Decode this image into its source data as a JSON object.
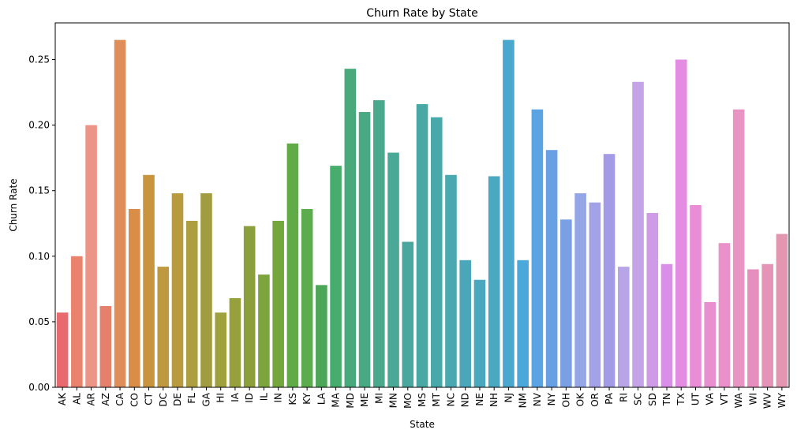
{
  "chart_data": {
    "type": "bar",
    "title": "Churn Rate by State",
    "xlabel": "State",
    "ylabel": "Churn Rate",
    "ylim": [
      0,
      0.278
    ],
    "yticks": [
      "0.00",
      "0.05",
      "0.10",
      "0.15",
      "0.20",
      "0.25"
    ],
    "grid": false,
    "categories": [
      "AK",
      "AL",
      "AR",
      "AZ",
      "CA",
      "CO",
      "CT",
      "DC",
      "DE",
      "FL",
      "GA",
      "HI",
      "IA",
      "ID",
      "IL",
      "IN",
      "KS",
      "KY",
      "LA",
      "MA",
      "MD",
      "ME",
      "MI",
      "MN",
      "MO",
      "MS",
      "MT",
      "NC",
      "ND",
      "NE",
      "NH",
      "NJ",
      "NM",
      "NV",
      "NY",
      "OH",
      "OK",
      "OR",
      "PA",
      "RI",
      "SC",
      "SD",
      "TN",
      "TX",
      "UT",
      "VA",
      "VT",
      "WA",
      "WI",
      "WV",
      "WY"
    ],
    "values": [
      0.057,
      0.1,
      0.2,
      0.062,
      0.265,
      0.136,
      0.162,
      0.092,
      0.148,
      0.127,
      0.148,
      0.057,
      0.068,
      0.123,
      0.086,
      0.127,
      0.186,
      0.136,
      0.078,
      0.169,
      0.243,
      0.21,
      0.219,
      0.179,
      0.111,
      0.216,
      0.206,
      0.162,
      0.097,
      0.082,
      0.161,
      0.265,
      0.097,
      0.212,
      0.181,
      0.128,
      0.148,
      0.141,
      0.178,
      0.092,
      0.233,
      0.133,
      0.094,
      0.25,
      0.139,
      0.065,
      0.11,
      0.212,
      0.09,
      0.094,
      0.117
    ],
    "colors": [
      "#e8696e",
      "#ea826d",
      "#ec9587",
      "#e4806c",
      "#df8e59",
      "#d98d47",
      "#c9943e",
      "#bf9940",
      "#b89b3e",
      "#ad9e3f",
      "#a29c40",
      "#9ea13c",
      "#96a13c",
      "#8c9f3d",
      "#7da53e",
      "#73a73e",
      "#61ab47",
      "#5aac4d",
      "#4ba657",
      "#47ad6c",
      "#48aa7b",
      "#49a982",
      "#4aa98c",
      "#4aa996",
      "#49a79e",
      "#48a8a4",
      "#49a8aa",
      "#4aa8b0",
      "#4aa6b8",
      "#4aa8be",
      "#4aa8c1",
      "#4aa8cf",
      "#4ba8db",
      "#5aa4e3",
      "#68a0e4",
      "#7aa0e3",
      "#95a6e6",
      "#a3a2e6",
      "#a49be6",
      "#b7a5e7",
      "#c5a3e7",
      "#cf9ae6",
      "#d98fe5",
      "#e48ce2",
      "#e98dd7",
      "#e98fd0",
      "#e991c8",
      "#e895c3",
      "#e68fbf",
      "#e593b6",
      "#e396b0"
    ]
  }
}
